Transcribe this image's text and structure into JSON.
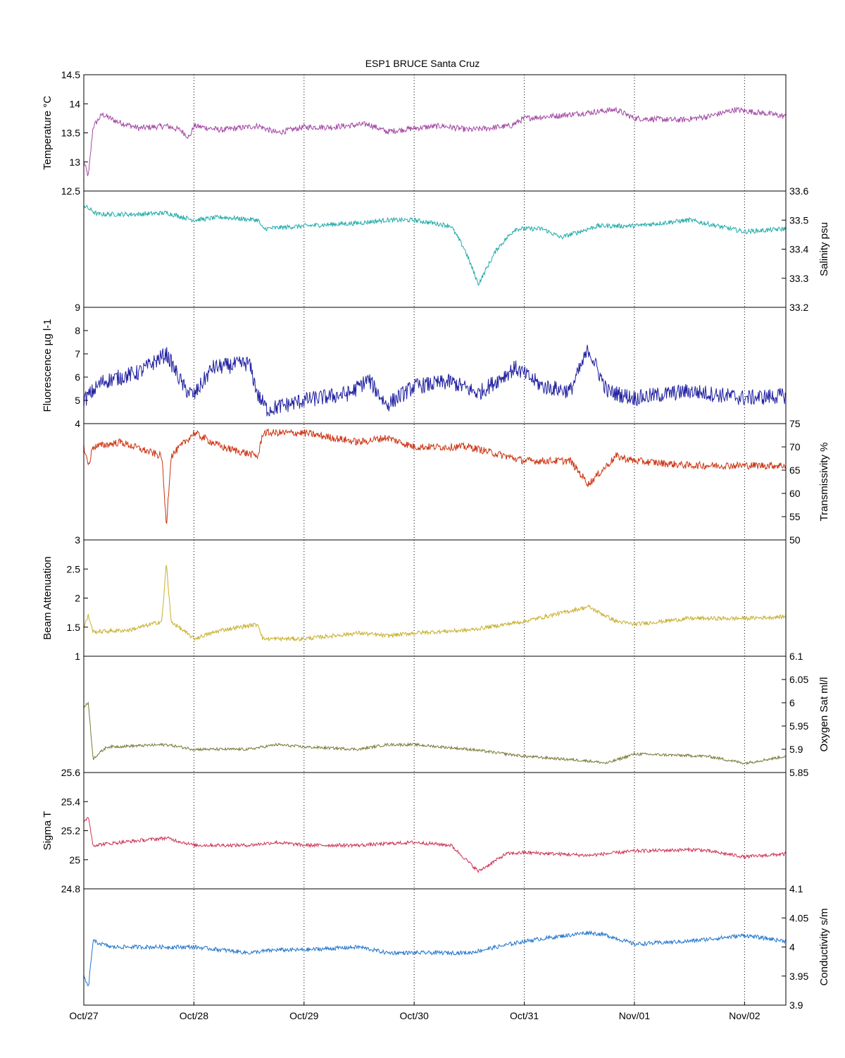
{
  "chart_data": {
    "type": "line",
    "title": "ESP1 BRUCE Santa Cruz",
    "x_axis": {
      "type": "date",
      "range": [
        "2008-10-27T00:00",
        "2008-11-02T09:00"
      ],
      "ticks": [
        {
          "date": "2008-10-27",
          "label": "Oct/27"
        },
        {
          "date": "2008-10-28",
          "label": "Oct/28"
        },
        {
          "date": "2008-10-29",
          "label": "Oct/29"
        },
        {
          "date": "2008-10-30",
          "label": "Oct/30"
        },
        {
          "date": "2008-10-31",
          "label": "Oct/31"
        },
        {
          "date": "2008-11-01",
          "label": "Nov/01"
        },
        {
          "date": "2008-11-02",
          "label": "Nov/02"
        }
      ],
      "grid": true
    },
    "panels": [
      {
        "ylabel": "Temperature °C",
        "side": "left",
        "color": "#a349a4",
        "ylim": [
          12.5,
          14.5
        ],
        "ticks": [
          {
            "v": 12.5,
            "label": "12.5"
          },
          {
            "v": 13,
            "label": "13"
          },
          {
            "v": 13.5,
            "label": "13.5"
          },
          {
            "v": 14,
            "label": "14"
          },
          {
            "v": 14.5,
            "label": "14.5"
          }
        ],
        "noise": 0.05,
        "points": [
          [
            "2008-10-27T00:00",
            13.0
          ],
          [
            "2008-10-27T01:00",
            12.75
          ],
          [
            "2008-10-27T02:00",
            13.6
          ],
          [
            "2008-10-27T04:00",
            13.82
          ],
          [
            "2008-10-27T07:00",
            13.7
          ],
          [
            "2008-10-27T12:00",
            13.58
          ],
          [
            "2008-10-27T18:00",
            13.62
          ],
          [
            "2008-10-27T21:00",
            13.55
          ],
          [
            "2008-10-27T23:00",
            13.42
          ],
          [
            "2008-10-28T00:00",
            13.62
          ],
          [
            "2008-10-28T06:00",
            13.55
          ],
          [
            "2008-10-28T14:00",
            13.62
          ],
          [
            "2008-10-28T18:00",
            13.5
          ],
          [
            "2008-10-28T24:00",
            13.6
          ],
          [
            "2008-10-29T06:00",
            13.6
          ],
          [
            "2008-10-29T14:00",
            13.65
          ],
          [
            "2008-10-29T18:00",
            13.52
          ],
          [
            "2008-10-30T00:00",
            13.58
          ],
          [
            "2008-10-30T06:00",
            13.62
          ],
          [
            "2008-10-30T12:00",
            13.55
          ],
          [
            "2008-10-30T21:00",
            13.62
          ],
          [
            "2008-10-31T00:00",
            13.75
          ],
          [
            "2008-10-31T08:00",
            13.8
          ],
          [
            "2008-10-31T14:00",
            13.85
          ],
          [
            "2008-10-31T20:00",
            13.9
          ],
          [
            "2008-11-01T00:00",
            13.75
          ],
          [
            "2008-11-01T10:00",
            13.72
          ],
          [
            "2008-11-01T16:00",
            13.78
          ],
          [
            "2008-11-01T22:00",
            13.9
          ],
          [
            "2008-11-02T06:00",
            13.82
          ],
          [
            "2008-11-02T09:00",
            13.78
          ]
        ]
      },
      {
        "ylabel": "Salinity psu",
        "side": "right",
        "color": "#22aaaa",
        "ylim": [
          33.2,
          33.6
        ],
        "ticks": [
          {
            "v": 33.2,
            "label": "33.2"
          },
          {
            "v": 33.3,
            "label": "33.3"
          },
          {
            "v": 33.4,
            "label": "33.4"
          },
          {
            "v": 33.5,
            "label": "33.5"
          },
          {
            "v": 33.6,
            "label": "33.6"
          }
        ],
        "noise": 0.008,
        "points": [
          [
            "2008-10-27T00:00",
            33.55
          ],
          [
            "2008-10-27T03:00",
            33.52
          ],
          [
            "2008-10-27T12:00",
            33.52
          ],
          [
            "2008-10-27T18:00",
            33.525
          ],
          [
            "2008-10-28T00:00",
            33.5
          ],
          [
            "2008-10-28T06:00",
            33.51
          ],
          [
            "2008-10-28T14:00",
            33.5
          ],
          [
            "2008-10-28T15:00",
            33.47
          ],
          [
            "2008-10-28T24:00",
            33.48
          ],
          [
            "2008-10-29T12:00",
            33.49
          ],
          [
            "2008-10-29T18:00",
            33.5
          ],
          [
            "2008-10-30T00:00",
            33.5
          ],
          [
            "2008-10-30T08:00",
            33.48
          ],
          [
            "2008-10-30T11:00",
            33.4
          ],
          [
            "2008-10-30T14:00",
            33.28
          ],
          [
            "2008-10-30T18:00",
            33.4
          ],
          [
            "2008-10-30T22:00",
            33.47
          ],
          [
            "2008-10-31T04:00",
            33.47
          ],
          [
            "2008-10-31T08:00",
            33.44
          ],
          [
            "2008-10-31T16:00",
            33.48
          ],
          [
            "2008-11-01T00:00",
            33.48
          ],
          [
            "2008-11-01T12:00",
            33.5
          ],
          [
            "2008-11-01T18:00",
            33.48
          ],
          [
            "2008-11-02T00:00",
            33.46
          ],
          [
            "2008-11-02T09:00",
            33.47
          ]
        ]
      },
      {
        "ylabel": "Fluorescence µg l-1",
        "side": "left",
        "color": "#2020a0",
        "ylim": [
          4,
          9
        ],
        "ticks": [
          {
            "v": 4,
            "label": "4"
          },
          {
            "v": 5,
            "label": "5"
          },
          {
            "v": 6,
            "label": "6"
          },
          {
            "v": 7,
            "label": "7"
          },
          {
            "v": 8,
            "label": "8"
          },
          {
            "v": 9,
            "label": "9"
          }
        ],
        "noise": 0.35,
        "points": [
          [
            "2008-10-27T00:00",
            5.0
          ],
          [
            "2008-10-27T04:00",
            5.8
          ],
          [
            "2008-10-27T12:00",
            6.2
          ],
          [
            "2008-10-27T18:00",
            7.0
          ],
          [
            "2008-10-27T22:00",
            5.5
          ],
          [
            "2008-10-28T00:00",
            5.2
          ],
          [
            "2008-10-28T04:00",
            6.4
          ],
          [
            "2008-10-28T12:00",
            6.6
          ],
          [
            "2008-10-28T14:00",
            5.2
          ],
          [
            "2008-10-28T16:00",
            4.6
          ],
          [
            "2008-10-28T24:00",
            5.0
          ],
          [
            "2008-10-29T10:00",
            5.3
          ],
          [
            "2008-10-29T14:00",
            5.9
          ],
          [
            "2008-10-29T18:00",
            4.8
          ],
          [
            "2008-10-30T00:00",
            5.6
          ],
          [
            "2008-10-30T08:00",
            5.8
          ],
          [
            "2008-10-30T14:00",
            5.3
          ],
          [
            "2008-10-30T22:00",
            6.4
          ],
          [
            "2008-10-31T04:00",
            5.6
          ],
          [
            "2008-10-31T10:00",
            5.4
          ],
          [
            "2008-10-31T14:00",
            7.2
          ],
          [
            "2008-10-31T18:00",
            5.4
          ],
          [
            "2008-11-01T00:00",
            5.1
          ],
          [
            "2008-11-01T12:00",
            5.4
          ],
          [
            "2008-11-02T00:00",
            5.1
          ],
          [
            "2008-11-02T09:00",
            5.2
          ]
        ]
      },
      {
        "ylabel": "Transmissivity %",
        "side": "right",
        "color": "#cc3311",
        "ylim": [
          50,
          75
        ],
        "ticks": [
          {
            "v": 50,
            "label": "50"
          },
          {
            "v": 55,
            "label": "55"
          },
          {
            "v": 60,
            "label": "60"
          },
          {
            "v": 65,
            "label": "65"
          },
          {
            "v": 70,
            "label": "70"
          },
          {
            "v": 75,
            "label": "75"
          }
        ],
        "noise": 0.8,
        "points": [
          [
            "2008-10-27T00:00",
            70
          ],
          [
            "2008-10-27T01:00",
            66
          ],
          [
            "2008-10-27T02:00",
            70
          ],
          [
            "2008-10-27T08:00",
            71
          ],
          [
            "2008-10-27T17:00",
            68
          ],
          [
            "2008-10-27T18:00",
            53
          ],
          [
            "2008-10-27T19:00",
            68
          ],
          [
            "2008-10-28T00:00",
            73
          ],
          [
            "2008-10-28T06:00",
            70
          ],
          [
            "2008-10-28T14:00",
            68
          ],
          [
            "2008-10-28T15:00",
            73
          ],
          [
            "2008-10-29T00:00",
            73
          ],
          [
            "2008-10-29T12:00",
            71
          ],
          [
            "2008-10-29T18:00",
            72
          ],
          [
            "2008-10-30T00:00",
            70
          ],
          [
            "2008-10-30T12:00",
            70
          ],
          [
            "2008-10-31T00:00",
            67
          ],
          [
            "2008-10-31T10:00",
            67
          ],
          [
            "2008-10-31T14:00",
            62
          ],
          [
            "2008-10-31T20:00",
            68
          ],
          [
            "2008-11-01T00:00",
            67
          ],
          [
            "2008-11-01T12:00",
            66
          ],
          [
            "2008-11-02T00:00",
            66
          ],
          [
            "2008-11-02T09:00",
            66
          ]
        ]
      },
      {
        "ylabel": "Beam Attenuation",
        "side": "left",
        "color": "#c8b030",
        "ylim": [
          1,
          3
        ],
        "ticks": [
          {
            "v": 1,
            "label": "1"
          },
          {
            "v": 1.5,
            "label": "1.5"
          },
          {
            "v": 2,
            "label": "2"
          },
          {
            "v": 2.5,
            "label": "2.5"
          },
          {
            "v": 3,
            "label": "3"
          }
        ],
        "noise": 0.035,
        "points": [
          [
            "2008-10-27T00:00",
            1.5
          ],
          [
            "2008-10-27T01:00",
            1.7
          ],
          [
            "2008-10-27T02:00",
            1.42
          ],
          [
            "2008-10-27T10:00",
            1.45
          ],
          [
            "2008-10-27T17:00",
            1.6
          ],
          [
            "2008-10-27T18:00",
            2.6
          ],
          [
            "2008-10-27T19:00",
            1.6
          ],
          [
            "2008-10-28T00:00",
            1.3
          ],
          [
            "2008-10-28T06:00",
            1.45
          ],
          [
            "2008-10-28T14:00",
            1.55
          ],
          [
            "2008-10-28T15:00",
            1.3
          ],
          [
            "2008-10-29T00:00",
            1.3
          ],
          [
            "2008-10-29T12:00",
            1.4
          ],
          [
            "2008-10-29T18:00",
            1.35
          ],
          [
            "2008-10-30T00:00",
            1.4
          ],
          [
            "2008-10-30T12:00",
            1.45
          ],
          [
            "2008-10-31T00:00",
            1.6
          ],
          [
            "2008-10-31T14:00",
            1.85
          ],
          [
            "2008-10-31T20:00",
            1.6
          ],
          [
            "2008-11-01T00:00",
            1.55
          ],
          [
            "2008-11-01T12:00",
            1.65
          ],
          [
            "2008-11-02T00:00",
            1.65
          ],
          [
            "2008-11-02T09:00",
            1.68
          ]
        ]
      },
      {
        "ylabel": "Oxygen Sat ml/l",
        "side": "right",
        "color": "#7a7a3a",
        "ylim": [
          5.85,
          6.1
        ],
        "ticks": [
          {
            "v": 5.85,
            "label": "5.85"
          },
          {
            "v": 5.9,
            "label": "5.9"
          },
          {
            "v": 5.95,
            "label": "5.95"
          },
          {
            "v": 6,
            "label": "6"
          },
          {
            "v": 6.05,
            "label": "6.05"
          },
          {
            "v": 6.1,
            "label": "6.1"
          }
        ],
        "noise": 0.003,
        "points": [
          [
            "2008-10-27T00:00",
            5.99
          ],
          [
            "2008-10-27T01:00",
            6.0
          ],
          [
            "2008-10-27T02:00",
            5.88
          ],
          [
            "2008-10-27T05:00",
            5.905
          ],
          [
            "2008-10-27T18:00",
            5.91
          ],
          [
            "2008-10-28T00:00",
            5.9
          ],
          [
            "2008-10-28T12:00",
            5.9
          ],
          [
            "2008-10-28T18:00",
            5.91
          ],
          [
            "2008-10-29T00:00",
            5.905
          ],
          [
            "2008-10-29T12:00",
            5.9
          ],
          [
            "2008-10-29T18:00",
            5.91
          ],
          [
            "2008-10-30T00:00",
            5.91
          ],
          [
            "2008-10-30T12:00",
            5.9
          ],
          [
            "2008-10-31T00:00",
            5.885
          ],
          [
            "2008-10-31T14:00",
            5.875
          ],
          [
            "2008-10-31T18:00",
            5.87
          ],
          [
            "2008-11-01T00:00",
            5.89
          ],
          [
            "2008-11-01T16:00",
            5.885
          ],
          [
            "2008-11-02T00:00",
            5.87
          ],
          [
            "2008-11-02T09:00",
            5.885
          ]
        ]
      },
      {
        "ylabel": "Sigma T",
        "side": "left",
        "color": "#cc3355",
        "ylim": [
          24.8,
          25.6
        ],
        "ticks": [
          {
            "v": 24.8,
            "label": "24.8"
          },
          {
            "v": 25,
            "label": "25"
          },
          {
            "v": 25.2,
            "label": "25.2"
          },
          {
            "v": 25.4,
            "label": "25.4"
          },
          {
            "v": 25.6,
            "label": "25.6"
          }
        ],
        "noise": 0.012,
        "points": [
          [
            "2008-10-27T00:00",
            25.25
          ],
          [
            "2008-10-27T01:00",
            25.3
          ],
          [
            "2008-10-27T02:00",
            25.1
          ],
          [
            "2008-10-27T08:00",
            25.12
          ],
          [
            "2008-10-27T18:00",
            25.15
          ],
          [
            "2008-10-28T00:00",
            25.1
          ],
          [
            "2008-10-28T12:00",
            25.1
          ],
          [
            "2008-10-28T18:00",
            25.12
          ],
          [
            "2008-10-29T00:00",
            25.1
          ],
          [
            "2008-10-29T12:00",
            25.1
          ],
          [
            "2008-10-30T00:00",
            25.12
          ],
          [
            "2008-10-30T08:00",
            25.1
          ],
          [
            "2008-10-30T14:00",
            24.92
          ],
          [
            "2008-10-30T20:00",
            25.04
          ],
          [
            "2008-10-31T00:00",
            25.05
          ],
          [
            "2008-10-31T14:00",
            25.03
          ],
          [
            "2008-11-01T00:00",
            25.06
          ],
          [
            "2008-11-01T14:00",
            25.07
          ],
          [
            "2008-11-02T00:00",
            25.02
          ],
          [
            "2008-11-02T09:00",
            25.04
          ]
        ]
      },
      {
        "ylabel": "Conductivity s/m",
        "side": "right",
        "color": "#2277cc",
        "ylim": [
          3.9,
          4.1
        ],
        "ticks": [
          {
            "v": 3.9,
            "label": "3.9"
          },
          {
            "v": 3.95,
            "label": "3.95"
          },
          {
            "v": 4,
            "label": "4"
          },
          {
            "v": 4.05,
            "label": "4.05"
          },
          {
            "v": 4.1,
            "label": "4.1"
          }
        ],
        "noise": 0.0035,
        "points": [
          [
            "2008-10-27T00:00",
            3.95
          ],
          [
            "2008-10-27T01:00",
            3.93
          ],
          [
            "2008-10-27T02:00",
            4.01
          ],
          [
            "2008-10-27T06:00",
            4.0
          ],
          [
            "2008-10-27T18:00",
            4.0
          ],
          [
            "2008-10-28T00:00",
            4.0
          ],
          [
            "2008-10-28T12:00",
            3.99
          ],
          [
            "2008-10-28T18:00",
            3.995
          ],
          [
            "2008-10-29T00:00",
            3.995
          ],
          [
            "2008-10-29T12:00",
            4.0
          ],
          [
            "2008-10-29T18:00",
            3.99
          ],
          [
            "2008-10-30T00:00",
            3.99
          ],
          [
            "2008-10-30T12:00",
            3.99
          ],
          [
            "2008-10-31T00:00",
            4.01
          ],
          [
            "2008-10-31T14:00",
            4.025
          ],
          [
            "2008-10-31T18:00",
            4.02
          ],
          [
            "2008-11-01T00:00",
            4.005
          ],
          [
            "2008-11-01T12:00",
            4.01
          ],
          [
            "2008-11-01T18:00",
            4.015
          ],
          [
            "2008-11-02T00:00",
            4.02
          ],
          [
            "2008-11-02T09:00",
            4.01
          ]
        ]
      }
    ]
  }
}
